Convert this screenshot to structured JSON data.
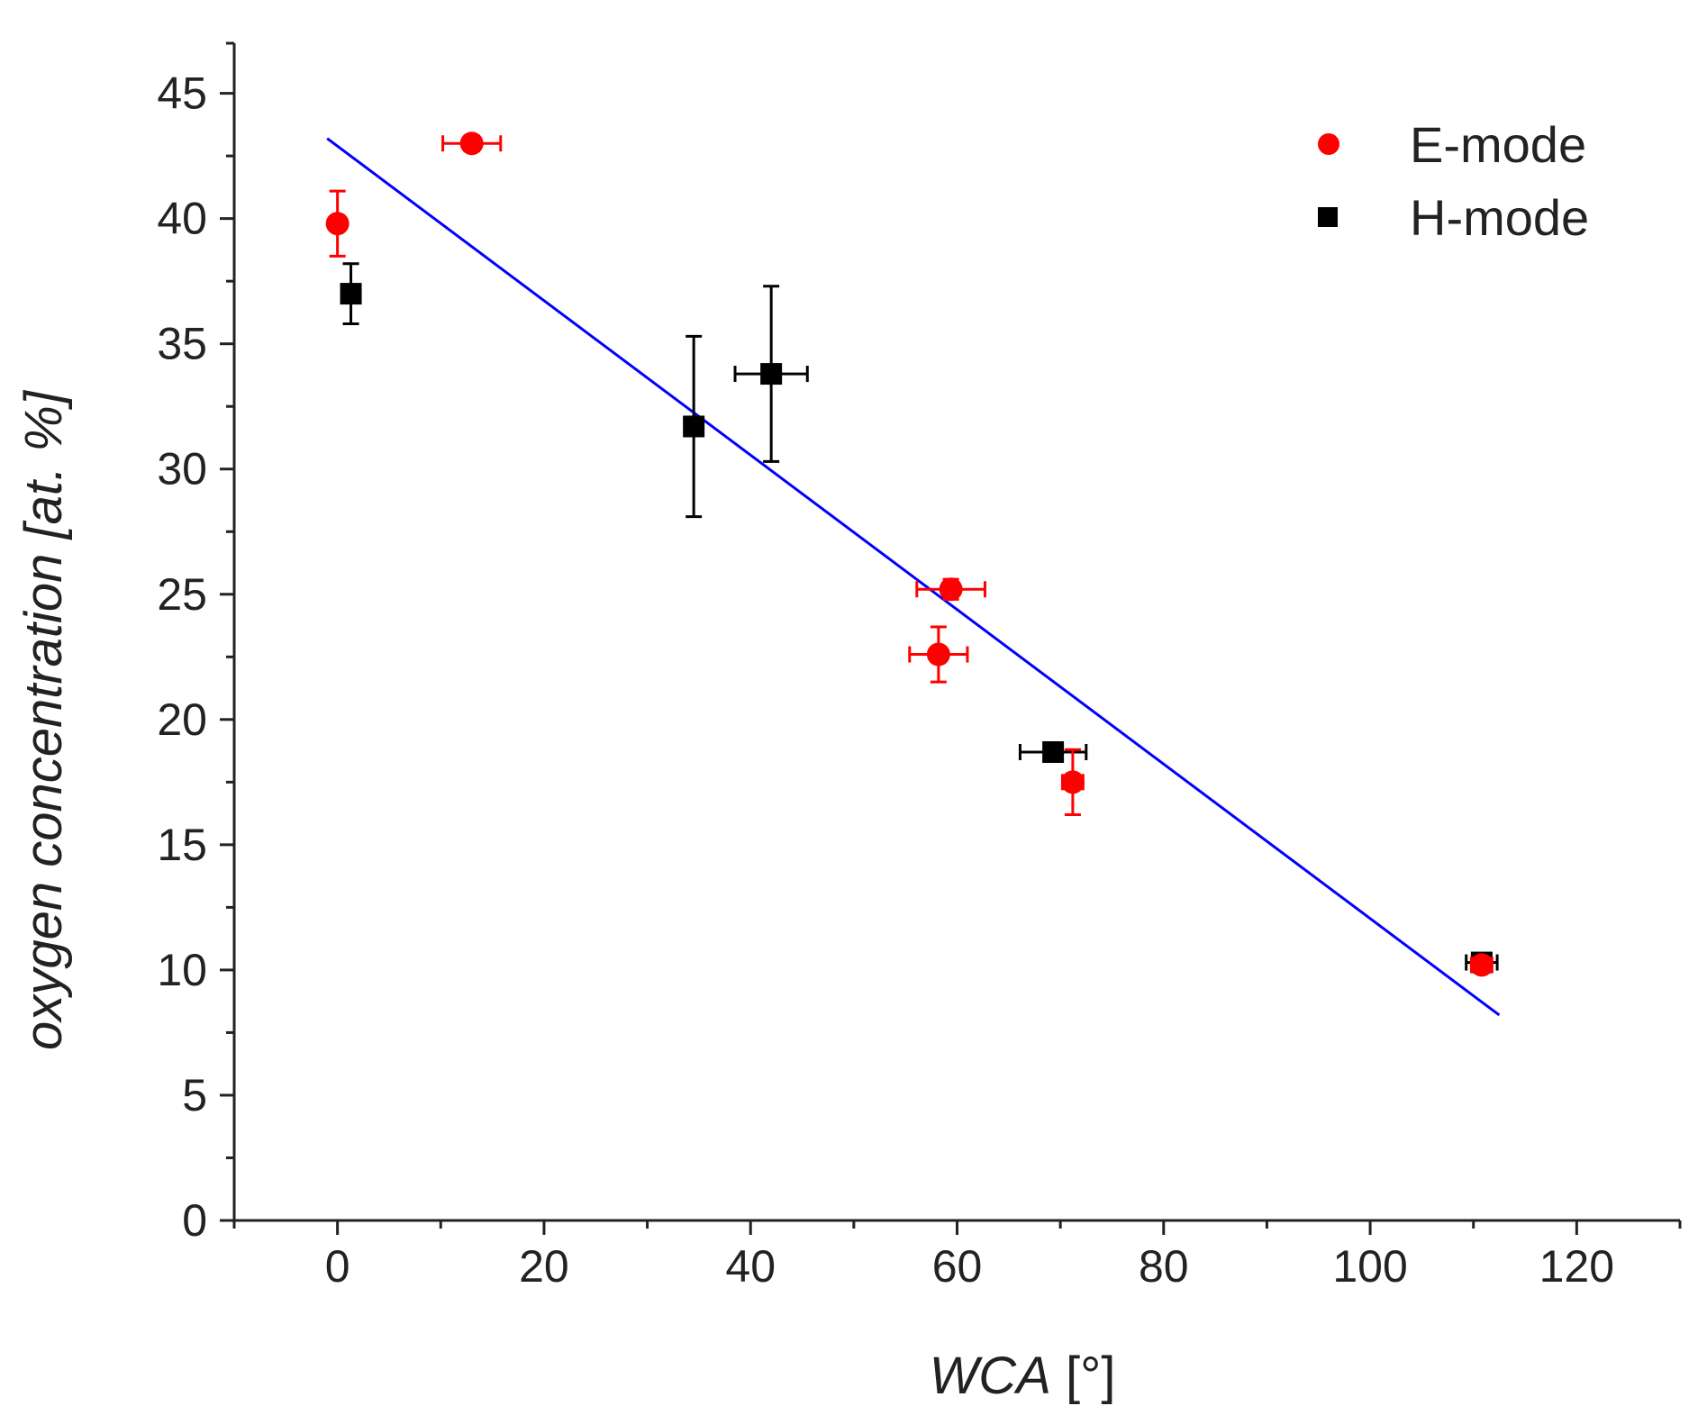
{
  "chart_data": {
    "type": "scatter",
    "title": "",
    "xlabel_italic": "WCA",
    "xlabel_unit": " [°]",
    "ylabel_italic": "oxygen concentration [at. %]",
    "xlim": [
      -10,
      130
    ],
    "ylim": [
      0,
      47
    ],
    "xticks": [
      0,
      20,
      40,
      60,
      80,
      100,
      120
    ],
    "xticks_minor": [
      -10,
      10,
      30,
      50,
      70,
      90,
      110,
      130
    ],
    "yticks": [
      0,
      5,
      10,
      15,
      20,
      25,
      30,
      35,
      40,
      45
    ],
    "yticks_minor": [
      2.5,
      7.5,
      12.5,
      17.5,
      22.5,
      27.5,
      32.5,
      37.5,
      42.5,
      47
    ],
    "grid": false,
    "legend_position": "top-right",
    "series": [
      {
        "name": "E-mode",
        "marker": "circle",
        "color": "#ff0000",
        "points": [
          {
            "x": 0,
            "y": 39.8,
            "xerr": 0.6,
            "yerr": 1.3
          },
          {
            "x": 13,
            "y": 43,
            "xerr": 2.8,
            "yerr": 0.3
          },
          {
            "x": 59.4,
            "y": 25.2,
            "xerr": 3.3,
            "yerr": 0.4
          },
          {
            "x": 58.2,
            "y": 22.6,
            "xerr": 2.8,
            "yerr": 1.1
          },
          {
            "x": 71.2,
            "y": 17.5,
            "xerr": 1.0,
            "yerr": 1.3
          },
          {
            "x": 110.8,
            "y": 10.2,
            "xerr": 1.0,
            "yerr": 0.3
          }
        ]
      },
      {
        "name": "H-mode",
        "marker": "square",
        "color": "#000000",
        "points": [
          {
            "x": 1.3,
            "y": 37,
            "xerr": 0.6,
            "yerr": 1.2
          },
          {
            "x": 34.5,
            "y": 31.7,
            "xerr": 0.8,
            "yerr": 3.6
          },
          {
            "x": 42,
            "y": 33.8,
            "xerr": 3.5,
            "yerr": 3.5
          },
          {
            "x": 69.3,
            "y": 18.7,
            "xerr": 3.2,
            "yerr": 0.3
          },
          {
            "x": 110.8,
            "y": 10.3,
            "xerr": 1.5,
            "yerr": 0.3
          }
        ]
      }
    ],
    "fit_line": {
      "name": "linear fit",
      "color": "#0000ff",
      "x_start": -1,
      "y_start": 43.2,
      "x_end": 112.5,
      "y_end": 8.2
    }
  }
}
